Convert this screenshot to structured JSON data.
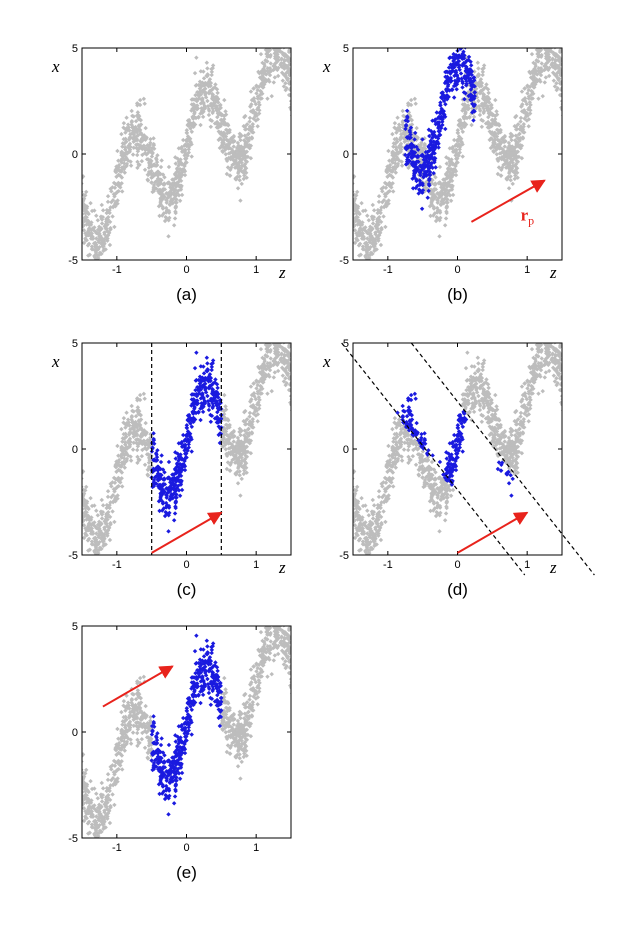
{
  "colors": {
    "background_points": "#bdbdbd",
    "highlight_points": "#1a1adf",
    "vector": "#e8231c",
    "boundary": "#000000"
  },
  "chart_data": [
    {
      "id": "a",
      "type": "scatter",
      "panel_label": "(a)",
      "xlabel": "z",
      "ylabel": "x",
      "xlim": [
        -1.5,
        1.5
      ],
      "ylim": [
        -5,
        5
      ],
      "xticks": [
        -1,
        0,
        1
      ],
      "yticks": [
        -5,
        0,
        5
      ],
      "xtick_labels": [
        "-1",
        "0",
        "1"
      ],
      "ytick_labels": [
        "-5",
        "0",
        "5"
      ],
      "highlight": null,
      "boundaries": null,
      "vector": null
    },
    {
      "id": "b",
      "type": "scatter",
      "panel_label": "(b)",
      "xlabel": "z",
      "ylabel": "x",
      "xlim": [
        -1.5,
        1.5
      ],
      "ylim": [
        -5,
        5
      ],
      "xticks": [
        -1,
        0,
        1
      ],
      "yticks": [
        -5,
        0,
        5
      ],
      "xtick_labels": [
        "-1",
        "0",
        "1"
      ],
      "ytick_labels": [
        "-5",
        "0",
        "5"
      ],
      "highlight": {
        "mode": "shifted",
        "shift": [
          -0.25,
          1.3
        ]
      },
      "boundaries": null,
      "vector": {
        "from": [
          0.2,
          -3.2
        ],
        "to": [
          1.25,
          -1.25
        ],
        "label": "r",
        "subscript": "p"
      }
    },
    {
      "id": "c",
      "type": "scatter",
      "panel_label": "(c)",
      "xlabel": "z",
      "ylabel": "x",
      "xlim": [
        -1.5,
        1.5
      ],
      "ylim": [
        -5,
        5
      ],
      "xticks": [
        -1,
        0,
        1
      ],
      "yticks": [
        -5,
        0,
        5
      ],
      "xtick_labels": [
        "-1",
        "0",
        "1"
      ],
      "ytick_labels": [
        "-5",
        "0",
        "5"
      ],
      "highlight": {
        "mode": "window",
        "slope": null
      },
      "boundaries": [
        {
          "z": -0.5
        },
        {
          "z": 0.5
        }
      ],
      "vector": {
        "from": [
          -0.5,
          -4.9
        ],
        "to": [
          0.5,
          -3.0
        ],
        "label": "",
        "subscript": ""
      }
    },
    {
      "id": "d",
      "type": "scatter",
      "panel_label": "(d)",
      "xlabel": "z",
      "ylabel": "x",
      "xlim": [
        -1.5,
        1.5
      ],
      "ylim": [
        -5,
        5
      ],
      "xticks": [
        -1,
        0,
        1
      ],
      "yticks": [
        -5,
        0,
        5
      ],
      "xtick_labels": [
        "-1",
        "0",
        "1"
      ],
      "ytick_labels": [
        "-5",
        "0",
        "5"
      ],
      "highlight": {
        "mode": "window",
        "slope": -4.3
      },
      "boundaries": [
        {
          "z0": -0.5,
          "slope": -4.3
        },
        {
          "z0": 0.5,
          "slope": -4.3
        }
      ],
      "vector": {
        "from": [
          0.0,
          -4.9
        ],
        "to": [
          1.0,
          -3.0
        ],
        "label": "",
        "subscript": ""
      }
    },
    {
      "id": "e",
      "type": "scatter",
      "panel_label": "(e)",
      "xlabel": "",
      "ylabel": "",
      "xlim": [
        -1.5,
        1.5
      ],
      "ylim": [
        -5,
        5
      ],
      "xticks": [
        -1,
        0,
        1
      ],
      "yticks": [
        -5,
        0,
        5
      ],
      "xtick_labels": [
        "-1",
        "0",
        "1"
      ],
      "ytick_labels": [
        "-5",
        "0",
        "5"
      ],
      "highlight": {
        "mode": "window",
        "slope": null
      },
      "boundaries": null,
      "vector": {
        "from": [
          -1.2,
          1.2
        ],
        "to": [
          -0.2,
          3.1
        ],
        "label": "",
        "subscript": ""
      }
    }
  ]
}
